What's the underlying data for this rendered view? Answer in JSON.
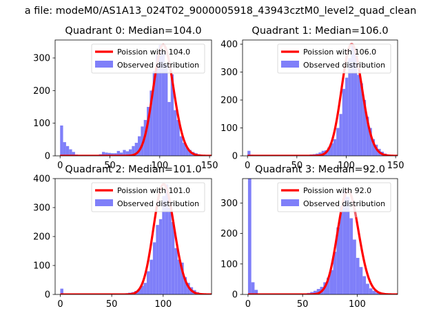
{
  "figure": {
    "suptitle": "a file: modeM0/AS1A13_024T02_9000005918_43943cztM0_level2_quad_clean"
  },
  "colors": {
    "hist": "#7f7ff9",
    "poisson": "#ff0000",
    "poisson_overlap": "#e9707a"
  },
  "chart_data": [
    {
      "type": "bar",
      "title": "Quadrant 0: Median=104.0",
      "median": 104.0,
      "xlim": [
        -5,
        152
      ],
      "ylim": [
        0,
        355
      ],
      "xticks": [
        0,
        50,
        100,
        150
      ],
      "yticks": [
        0,
        100,
        200,
        300
      ],
      "legend": [
        "Poission with 104.0",
        "Observed distribution"
      ],
      "legend_position": "top-right",
      "series": [
        {
          "name": "Observed distribution",
          "kind": "histogram",
          "bin_edges": [
            0,
            3,
            6,
            9,
            12,
            15,
            18,
            21,
            24,
            27,
            30,
            33,
            36,
            39,
            42,
            45,
            48,
            51,
            54,
            57,
            60,
            63,
            66,
            69,
            72,
            75,
            78,
            81,
            84,
            87,
            90,
            93,
            96,
            99,
            102,
            105,
            108,
            111,
            114,
            117,
            120,
            123,
            126,
            129,
            132,
            135,
            138,
            141,
            144
          ],
          "counts": [
            93,
            42,
            30,
            20,
            12,
            4,
            3,
            2,
            2,
            1,
            1,
            1,
            3,
            5,
            12,
            10,
            9,
            8,
            8,
            15,
            10,
            18,
            14,
            20,
            30,
            40,
            60,
            90,
            110,
            150,
            200,
            260,
            310,
            340,
            320,
            280,
            165,
            250,
            140,
            110,
            60,
            40,
            25,
            18,
            12,
            8,
            5,
            3
          ]
        },
        {
          "name": "Poission with 104.0",
          "kind": "poisson",
          "lambda": 104.0,
          "scale": 340
        }
      ]
    },
    {
      "type": "bar",
      "title": "Quadrant 1: Median=106.0",
      "median": 106.0,
      "xlim": [
        -5,
        152
      ],
      "ylim": [
        0,
        415
      ],
      "xticks": [
        0,
        50,
        100,
        150
      ],
      "yticks": [
        0,
        100,
        200,
        300,
        400
      ],
      "legend": [
        "Poission with 106.0",
        "Observed distribution"
      ],
      "legend_position": "top-right",
      "series": [
        {
          "name": "Observed distribution",
          "kind": "histogram",
          "bin_edges": [
            0,
            3,
            6,
            9,
            12,
            15,
            18,
            21,
            24,
            27,
            30,
            33,
            36,
            39,
            42,
            45,
            48,
            51,
            54,
            57,
            60,
            63,
            66,
            69,
            72,
            75,
            78,
            81,
            84,
            87,
            90,
            93,
            96,
            99,
            102,
            105,
            108,
            111,
            114,
            117,
            120,
            123,
            126,
            129,
            132,
            135,
            138,
            141,
            144
          ],
          "counts": [
            18,
            4,
            3,
            2,
            2,
            1,
            1,
            1,
            1,
            1,
            1,
            1,
            1,
            1,
            1,
            1,
            1,
            2,
            2,
            2,
            3,
            5,
            6,
            8,
            12,
            18,
            20,
            30,
            45,
            60,
            100,
            150,
            240,
            280,
            350,
            400,
            380,
            290,
            260,
            200,
            140,
            100,
            60,
            40,
            25,
            15,
            8,
            4
          ]
        },
        {
          "name": "Poission with 106.0",
          "kind": "poisson",
          "lambda": 106.0,
          "scale": 400
        }
      ]
    },
    {
      "type": "bar",
      "title": "Quadrant 2: Median=101.0",
      "median": 101.0,
      "xlim": [
        -5,
        147
      ],
      "ylim": [
        0,
        400
      ],
      "xticks": [
        0,
        50,
        100
      ],
      "yticks": [
        0,
        100,
        200,
        300,
        400
      ],
      "legend": [
        "Poission with 101.0",
        "Observed distribution"
      ],
      "legend_position": "top-right",
      "series": [
        {
          "name": "Observed distribution",
          "kind": "histogram",
          "bin_edges": [
            0,
            3,
            6,
            9,
            12,
            15,
            18,
            21,
            24,
            27,
            30,
            33,
            36,
            39,
            42,
            45,
            48,
            51,
            54,
            57,
            60,
            63,
            66,
            69,
            72,
            75,
            78,
            81,
            84,
            87,
            90,
            93,
            96,
            99,
            102,
            105,
            108,
            111,
            114,
            117,
            120,
            123,
            126,
            129,
            132,
            135,
            138
          ],
          "counts": [
            20,
            2,
            1,
            1,
            1,
            1,
            1,
            1,
            1,
            1,
            1,
            1,
            1,
            1,
            1,
            1,
            1,
            1,
            2,
            2,
            3,
            4,
            6,
            8,
            12,
            18,
            30,
            40,
            80,
            120,
            180,
            240,
            260,
            340,
            380,
            300,
            250,
            160,
            120,
            110,
            60,
            40,
            25,
            15,
            8,
            4
          ]
        },
        {
          "name": "Poission with 101.0",
          "kind": "poisson",
          "lambda": 101.0,
          "scale": 380
        }
      ]
    },
    {
      "type": "bar",
      "title": "Quadrant 3: Median=92.0",
      "median": 92.0,
      "xlim": [
        -5,
        137
      ],
      "ylim": [
        0,
        380
      ],
      "xticks": [
        0,
        50,
        100
      ],
      "yticks": [
        0,
        100,
        200,
        300
      ],
      "legend": [
        "Poission with 92.0",
        "Observed distribution"
      ],
      "legend_position": "top-right",
      "series": [
        {
          "name": "Observed distribution",
          "kind": "histogram",
          "bin_edges": [
            0,
            3,
            6,
            9,
            12,
            15,
            18,
            21,
            24,
            27,
            30,
            33,
            36,
            39,
            42,
            45,
            48,
            51,
            54,
            57,
            60,
            63,
            66,
            69,
            72,
            75,
            78,
            81,
            84,
            87,
            90,
            93,
            96,
            99,
            102,
            105,
            108,
            111,
            114,
            117,
            120,
            123,
            126,
            129
          ],
          "counts": [
            380,
            40,
            15,
            2,
            1,
            1,
            1,
            1,
            1,
            1,
            1,
            1,
            1,
            1,
            1,
            1,
            2,
            3,
            5,
            8,
            12,
            18,
            25,
            40,
            55,
            80,
            140,
            220,
            290,
            340,
            320,
            250,
            180,
            120,
            90,
            60,
            35,
            20,
            12,
            6,
            3,
            2,
            1
          ]
        },
        {
          "name": "Poission with 92.0",
          "kind": "poisson",
          "lambda": 92.0,
          "scale": 340
        }
      ]
    }
  ]
}
